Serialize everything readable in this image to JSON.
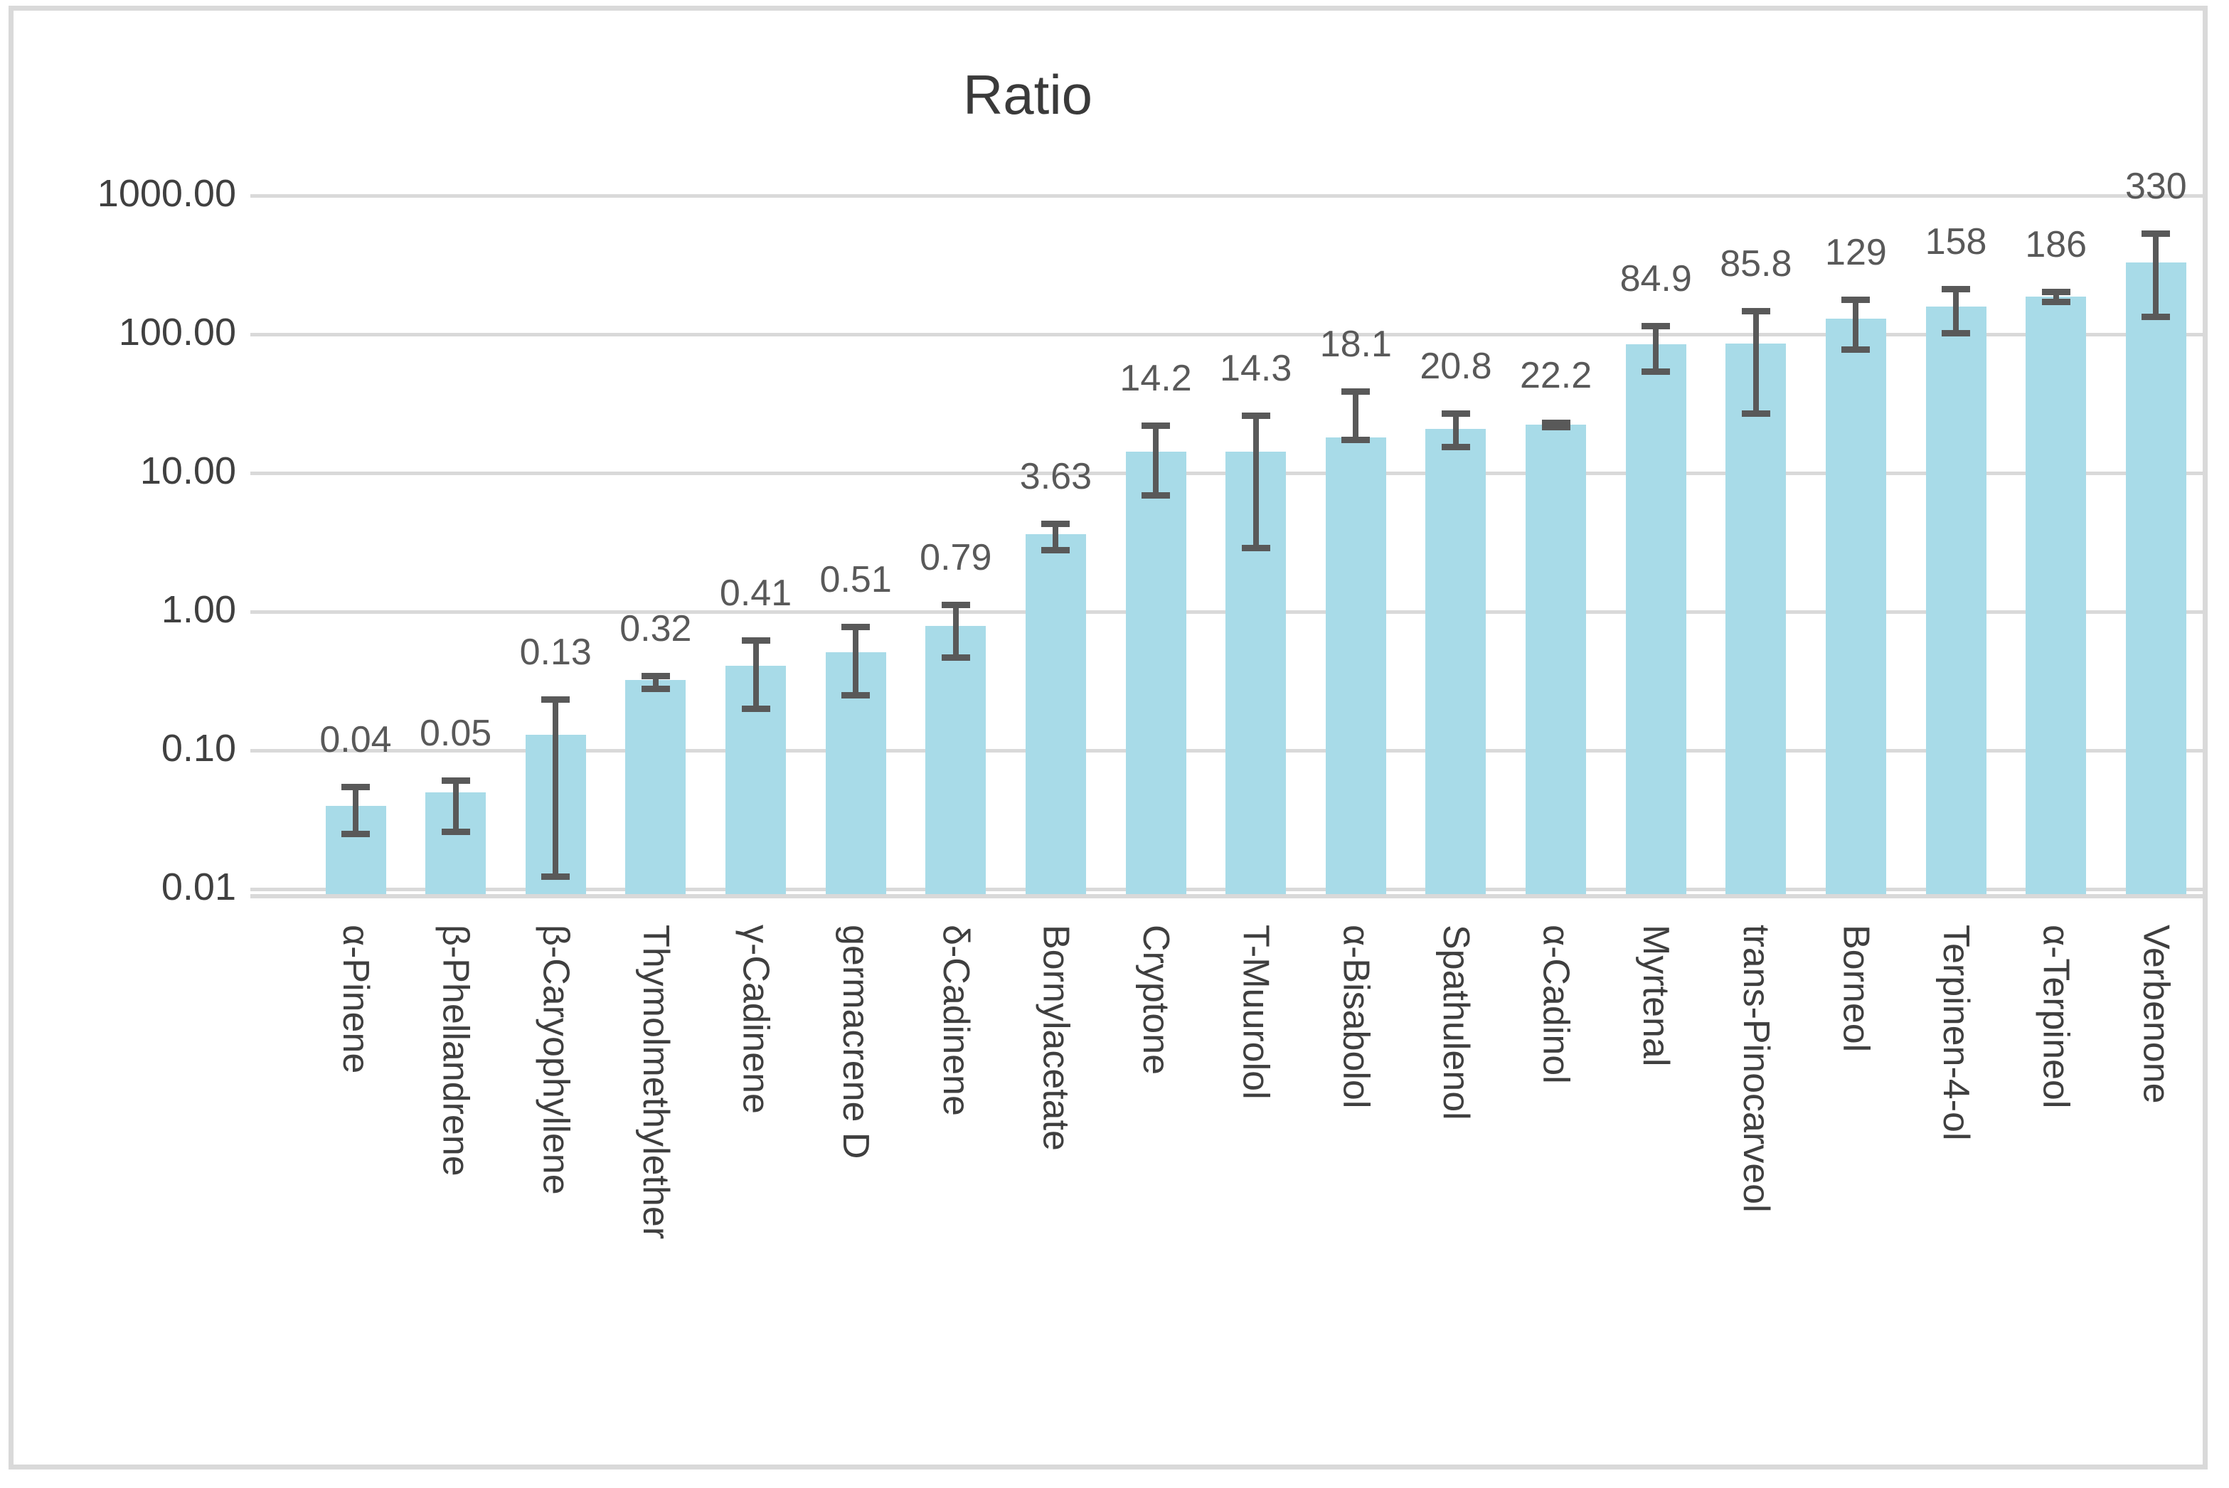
{
  "title": "Ratio",
  "y_axis": {
    "tick_labels": [
      "1000.00",
      "100.00",
      "10.00",
      "1.00",
      "0.10",
      "0.01"
    ],
    "tick_values": [
      1000,
      100,
      10,
      1,
      0.1,
      0.01
    ]
  },
  "colors": {
    "bar_fill": "#a8dbe8",
    "error_bar": "#595959",
    "data_label": "#595959",
    "axis_text": "#404040",
    "gridline": "#d9d9d9",
    "chart_border": "#d9d9d9",
    "title_text": "#3a3a3a"
  },
  "chart_data": {
    "type": "bar",
    "title": "Ratio",
    "xlabel": "",
    "ylabel": "",
    "y_scale": "log",
    "ylim": [
      0.01,
      1000
    ],
    "grid": true,
    "legend": "none",
    "categories": [
      "α-Pinene",
      "β-Phellandrene",
      "β-Caryophyllene",
      "Thymolmethylether",
      "γ-Cadinene",
      "germacrene D",
      "δ-Cadinene",
      "Bornylacetate",
      "Cryptone",
      "T-Muurolol",
      "α-Bisabolol",
      "Spathulenol",
      "α-Cadinol",
      "Myrtenal",
      "trans-Pinocarveol",
      "Borneol",
      "Terpinen-4-ol",
      "α-Terpineol",
      "Verbenone"
    ],
    "values": [
      0.04,
      0.05,
      0.13,
      0.32,
      0.41,
      0.51,
      0.79,
      3.63,
      14.2,
      14.3,
      18.1,
      20.8,
      22.2,
      84.9,
      85.8,
      129,
      158,
      186,
      330
    ],
    "value_labels": [
      "0.04",
      "0.05",
      "0.13",
      "0.32",
      "0.41",
      "0.51",
      "0.79",
      "3.63",
      "14.2",
      "14.3",
      "18.1",
      "20.8",
      "22.2",
      "84.9",
      "85.8",
      "129",
      "158",
      "186",
      "330"
    ],
    "error_low": [
      0.025,
      0.026,
      0.0124,
      0.28,
      0.2,
      0.25,
      0.47,
      2.8,
      6.9,
      2.9,
      17.5,
      15.5,
      21.5,
      54,
      27,
      78,
      102,
      172,
      134
    ],
    "error_high": [
      0.055,
      0.061,
      0.235,
      0.345,
      0.62,
      0.78,
      1.13,
      4.3,
      22,
      26,
      39,
      27,
      23,
      115,
      147,
      178,
      213,
      202,
      537
    ]
  }
}
